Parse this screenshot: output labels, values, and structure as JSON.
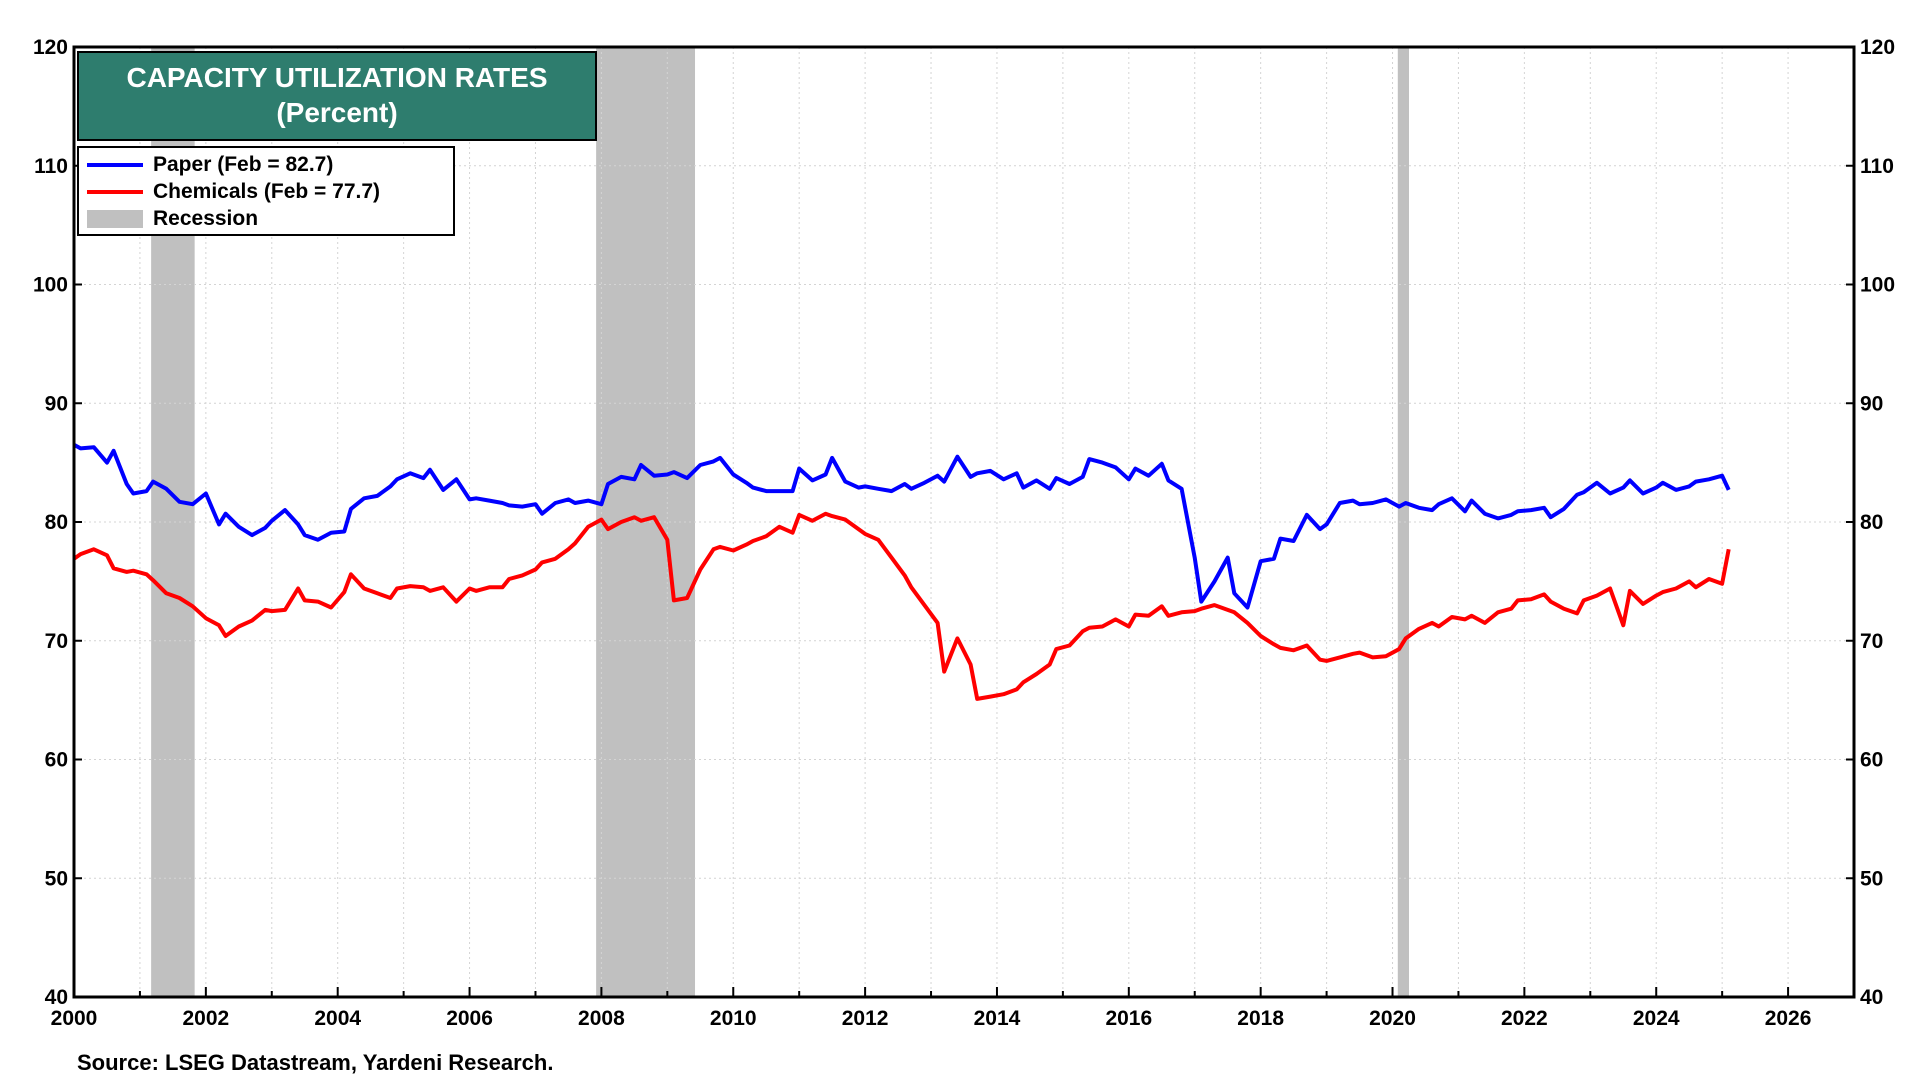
{
  "chart_data": {
    "type": "line",
    "title": "CAPACITY UTILIZATION RATES",
    "subtitle": "(Percent)",
    "source": "Source: LSEG Datastream, Yardeni Research.",
    "x_range": [
      2000,
      2027
    ],
    "y_range": [
      40,
      120
    ],
    "x_ticks": [
      "2000",
      "2002",
      "2004",
      "2006",
      "2008",
      "2010",
      "2012",
      "2014",
      "2016",
      "2018",
      "2020",
      "2022",
      "2024",
      "2026"
    ],
    "y_ticks": [
      "40",
      "50",
      "60",
      "70",
      "80",
      "90",
      "100",
      "110",
      "120"
    ],
    "grid": true,
    "legend_position": "top-left",
    "recession_label": "Recession",
    "recession_color": "#c0c0c0",
    "recessions": [
      [
        2001.17,
        2001.83
      ],
      [
        2007.92,
        2009.42
      ],
      [
        2020.08,
        2020.25
      ]
    ],
    "series": [
      {
        "name": "Paper (Feb = 82.7)",
        "color": "#0000ff",
        "points": [
          [
            2000.0,
            86.5
          ],
          [
            2000.1,
            86.2
          ],
          [
            2000.3,
            86.3
          ],
          [
            2000.5,
            85.0
          ],
          [
            2000.6,
            86.0
          ],
          [
            2000.8,
            83.2
          ],
          [
            2000.9,
            82.4
          ],
          [
            2001.1,
            82.6
          ],
          [
            2001.2,
            83.4
          ],
          [
            2001.4,
            82.8
          ],
          [
            2001.6,
            81.7
          ],
          [
            2001.8,
            81.5
          ],
          [
            2002.0,
            82.4
          ],
          [
            2002.2,
            79.8
          ],
          [
            2002.3,
            80.7
          ],
          [
            2002.5,
            79.6
          ],
          [
            2002.7,
            78.9
          ],
          [
            2002.9,
            79.5
          ],
          [
            2003.0,
            80.1
          ],
          [
            2003.2,
            81.0
          ],
          [
            2003.4,
            79.8
          ],
          [
            2003.5,
            78.9
          ],
          [
            2003.7,
            78.5
          ],
          [
            2003.9,
            79.1
          ],
          [
            2004.1,
            79.2
          ],
          [
            2004.2,
            81.1
          ],
          [
            2004.4,
            82.0
          ],
          [
            2004.6,
            82.2
          ],
          [
            2004.8,
            83.0
          ],
          [
            2004.9,
            83.6
          ],
          [
            2005.1,
            84.1
          ],
          [
            2005.3,
            83.7
          ],
          [
            2005.4,
            84.4
          ],
          [
            2005.6,
            82.7
          ],
          [
            2005.8,
            83.6
          ],
          [
            2006.0,
            81.9
          ],
          [
            2006.1,
            82.0
          ],
          [
            2006.3,
            81.8
          ],
          [
            2006.5,
            81.6
          ],
          [
            2006.6,
            81.4
          ],
          [
            2006.8,
            81.3
          ],
          [
            2007.0,
            81.5
          ],
          [
            2007.1,
            80.7
          ],
          [
            2007.3,
            81.6
          ],
          [
            2007.5,
            81.9
          ],
          [
            2007.6,
            81.6
          ],
          [
            2007.8,
            81.8
          ],
          [
            2008.0,
            81.5
          ],
          [
            2008.1,
            83.2
          ],
          [
            2008.3,
            83.8
          ],
          [
            2008.5,
            83.6
          ],
          [
            2008.6,
            84.8
          ],
          [
            2008.8,
            83.9
          ],
          [
            2009.0,
            84.0
          ],
          [
            2009.1,
            84.2
          ],
          [
            2009.3,
            83.7
          ],
          [
            2009.5,
            84.8
          ],
          [
            2009.7,
            85.1
          ],
          [
            2009.8,
            85.4
          ],
          [
            2010.0,
            84.0
          ],
          [
            2010.2,
            83.3
          ],
          [
            2010.3,
            82.9
          ],
          [
            2010.5,
            82.6
          ],
          [
            2010.7,
            82.6
          ],
          [
            2010.9,
            82.6
          ],
          [
            2011.0,
            84.5
          ],
          [
            2011.2,
            83.5
          ],
          [
            2011.4,
            84.0
          ],
          [
            2011.5,
            85.4
          ],
          [
            2011.7,
            83.4
          ],
          [
            2011.9,
            82.9
          ],
          [
            2012.0,
            83.0
          ],
          [
            2012.2,
            82.8
          ],
          [
            2012.4,
            82.6
          ],
          [
            2012.6,
            83.2
          ],
          [
            2012.7,
            82.8
          ],
          [
            2012.9,
            83.3
          ],
          [
            2013.1,
            83.9
          ],
          [
            2013.2,
            83.4
          ],
          [
            2013.4,
            85.5
          ],
          [
            2013.6,
            83.8
          ],
          [
            2013.7,
            84.1
          ],
          [
            2013.9,
            84.3
          ],
          [
            2014.1,
            83.6
          ],
          [
            2014.3,
            84.1
          ],
          [
            2014.4,
            82.9
          ],
          [
            2014.6,
            83.5
          ],
          [
            2014.8,
            82.8
          ],
          [
            2014.9,
            83.7
          ],
          [
            2015.1,
            83.2
          ],
          [
            2015.3,
            83.8
          ],
          [
            2015.4,
            85.3
          ],
          [
            2015.6,
            85.0
          ],
          [
            2015.8,
            84.6
          ],
          [
            2016.0,
            83.6
          ],
          [
            2016.1,
            84.5
          ],
          [
            2016.3,
            83.9
          ],
          [
            2016.5,
            84.9
          ],
          [
            2016.6,
            83.5
          ],
          [
            2016.8,
            82.8
          ],
          [
            2017.0,
            77.0
          ],
          [
            2017.1,
            73.3
          ],
          [
            2017.3,
            75.0
          ],
          [
            2017.5,
            77.0
          ],
          [
            2017.6,
            74.0
          ],
          [
            2017.8,
            72.8
          ],
          [
            2018.0,
            76.7
          ],
          [
            2018.2,
            76.9
          ],
          [
            2018.3,
            78.6
          ],
          [
            2018.5,
            78.4
          ],
          [
            2018.7,
            80.6
          ],
          [
            2018.9,
            79.4
          ],
          [
            2019.0,
            79.8
          ],
          [
            2019.2,
            81.6
          ],
          [
            2019.4,
            81.8
          ],
          [
            2019.5,
            81.5
          ],
          [
            2019.7,
            81.6
          ],
          [
            2019.9,
            81.9
          ],
          [
            2020.1,
            81.3
          ],
          [
            2020.2,
            81.6
          ],
          [
            2020.4,
            81.2
          ],
          [
            2020.6,
            81.0
          ],
          [
            2020.7,
            81.5
          ],
          [
            2020.9,
            82.0
          ],
          [
            2021.1,
            80.9
          ],
          [
            2021.2,
            81.8
          ],
          [
            2021.4,
            80.7
          ],
          [
            2021.6,
            80.3
          ],
          [
            2021.8,
            80.6
          ],
          [
            2021.9,
            80.9
          ],
          [
            2022.1,
            81.0
          ],
          [
            2022.3,
            81.2
          ],
          [
            2022.4,
            80.4
          ],
          [
            2022.6,
            81.1
          ],
          [
            2022.8,
            82.3
          ],
          [
            2022.9,
            82.5
          ],
          [
            2023.1,
            83.3
          ],
          [
            2023.3,
            82.4
          ],
          [
            2023.5,
            82.9
          ],
          [
            2023.6,
            83.5
          ],
          [
            2023.8,
            82.4
          ],
          [
            2024.0,
            82.9
          ],
          [
            2024.1,
            83.3
          ],
          [
            2024.3,
            82.7
          ],
          [
            2024.5,
            83.0
          ],
          [
            2024.6,
            83.4
          ],
          [
            2024.8,
            83.6
          ],
          [
            2025.0,
            83.9
          ],
          [
            2025.1,
            82.7
          ]
        ]
      },
      {
        "name": "Chemicals (Feb = 77.7)",
        "color": "#ff0000",
        "points": [
          [
            2000.0,
            76.9
          ],
          [
            2000.1,
            77.3
          ],
          [
            2000.3,
            77.7
          ],
          [
            2000.5,
            77.2
          ],
          [
            2000.6,
            76.1
          ],
          [
            2000.8,
            75.8
          ],
          [
            2000.9,
            75.9
          ],
          [
            2001.1,
            75.6
          ],
          [
            2001.2,
            75.1
          ],
          [
            2001.4,
            74.0
          ],
          [
            2001.6,
            73.6
          ],
          [
            2001.8,
            72.9
          ],
          [
            2002.0,
            71.9
          ],
          [
            2002.2,
            71.3
          ],
          [
            2002.3,
            70.4
          ],
          [
            2002.5,
            71.2
          ],
          [
            2002.7,
            71.7
          ],
          [
            2002.9,
            72.6
          ],
          [
            2003.0,
            72.5
          ],
          [
            2003.2,
            72.6
          ],
          [
            2003.4,
            74.4
          ],
          [
            2003.5,
            73.4
          ],
          [
            2003.7,
            73.3
          ],
          [
            2003.9,
            72.8
          ],
          [
            2004.1,
            74.1
          ],
          [
            2004.2,
            75.6
          ],
          [
            2004.4,
            74.4
          ],
          [
            2004.6,
            74.0
          ],
          [
            2004.8,
            73.6
          ],
          [
            2004.9,
            74.4
          ],
          [
            2005.1,
            74.6
          ],
          [
            2005.3,
            74.5
          ],
          [
            2005.4,
            74.2
          ],
          [
            2005.6,
            74.5
          ],
          [
            2005.8,
            73.3
          ],
          [
            2006.0,
            74.4
          ],
          [
            2006.1,
            74.2
          ],
          [
            2006.3,
            74.5
          ],
          [
            2006.5,
            74.5
          ],
          [
            2006.6,
            75.2
          ],
          [
            2006.8,
            75.5
          ],
          [
            2007.0,
            76.0
          ],
          [
            2007.1,
            76.6
          ],
          [
            2007.3,
            76.9
          ],
          [
            2007.5,
            77.7
          ],
          [
            2007.6,
            78.2
          ],
          [
            2007.8,
            79.6
          ],
          [
            2008.0,
            80.2
          ],
          [
            2008.1,
            79.4
          ],
          [
            2008.3,
            80.0
          ],
          [
            2008.5,
            80.4
          ],
          [
            2008.6,
            80.1
          ],
          [
            2008.8,
            80.4
          ],
          [
            2009.0,
            78.5
          ],
          [
            2009.1,
            73.4
          ],
          [
            2009.3,
            73.6
          ],
          [
            2009.5,
            76.0
          ],
          [
            2009.7,
            77.7
          ],
          [
            2009.8,
            77.9
          ],
          [
            2010.0,
            77.6
          ],
          [
            2010.2,
            78.1
          ],
          [
            2010.3,
            78.4
          ],
          [
            2010.5,
            78.8
          ],
          [
            2010.7,
            79.6
          ],
          [
            2010.9,
            79.1
          ],
          [
            2011.0,
            80.6
          ],
          [
            2011.2,
            80.1
          ],
          [
            2011.4,
            80.7
          ],
          [
            2011.5,
            80.5
          ],
          [
            2011.7,
            80.2
          ],
          [
            2011.9,
            79.4
          ],
          [
            2012.0,
            79.0
          ],
          [
            2012.2,
            78.5
          ],
          [
            2012.4,
            77.0
          ],
          [
            2012.6,
            75.5
          ],
          [
            2012.7,
            74.5
          ],
          [
            2012.9,
            73.0
          ],
          [
            2013.1,
            71.5
          ],
          [
            2013.2,
            67.4
          ],
          [
            2013.4,
            70.2
          ],
          [
            2013.6,
            68.0
          ],
          [
            2013.7,
            65.1
          ],
          [
            2013.9,
            65.3
          ],
          [
            2014.1,
            65.5
          ],
          [
            2014.3,
            65.9
          ],
          [
            2014.4,
            66.5
          ],
          [
            2014.6,
            67.2
          ],
          [
            2014.8,
            68.0
          ],
          [
            2014.9,
            69.3
          ],
          [
            2015.1,
            69.6
          ],
          [
            2015.3,
            70.8
          ],
          [
            2015.4,
            71.1
          ],
          [
            2015.6,
            71.2
          ],
          [
            2015.8,
            71.8
          ],
          [
            2016.0,
            71.2
          ],
          [
            2016.1,
            72.2
          ],
          [
            2016.3,
            72.1
          ],
          [
            2016.5,
            72.9
          ],
          [
            2016.6,
            72.1
          ],
          [
            2016.8,
            72.4
          ],
          [
            2017.0,
            72.5
          ],
          [
            2017.1,
            72.7
          ],
          [
            2017.3,
            73.0
          ],
          [
            2017.5,
            72.6
          ],
          [
            2017.6,
            72.4
          ],
          [
            2017.8,
            71.5
          ],
          [
            2018.0,
            70.4
          ],
          [
            2018.2,
            69.7
          ],
          [
            2018.3,
            69.4
          ],
          [
            2018.5,
            69.2
          ],
          [
            2018.7,
            69.6
          ],
          [
            2018.9,
            68.4
          ],
          [
            2019.0,
            68.3
          ],
          [
            2019.2,
            68.6
          ],
          [
            2019.4,
            68.9
          ],
          [
            2019.5,
            69.0
          ],
          [
            2019.7,
            68.6
          ],
          [
            2019.9,
            68.7
          ],
          [
            2020.1,
            69.3
          ],
          [
            2020.2,
            70.2
          ],
          [
            2020.4,
            71.0
          ],
          [
            2020.6,
            71.5
          ],
          [
            2020.7,
            71.2
          ],
          [
            2020.9,
            72.0
          ],
          [
            2021.1,
            71.8
          ],
          [
            2021.2,
            72.1
          ],
          [
            2021.4,
            71.5
          ],
          [
            2021.6,
            72.4
          ],
          [
            2021.8,
            72.7
          ],
          [
            2021.9,
            73.4
          ],
          [
            2022.1,
            73.5
          ],
          [
            2022.3,
            73.9
          ],
          [
            2022.4,
            73.3
          ],
          [
            2022.6,
            72.7
          ],
          [
            2022.8,
            72.3
          ],
          [
            2022.9,
            73.4
          ],
          [
            2023.1,
            73.8
          ],
          [
            2023.3,
            74.4
          ],
          [
            2023.5,
            71.3
          ],
          [
            2023.6,
            74.2
          ],
          [
            2023.8,
            73.1
          ],
          [
            2024.0,
            73.8
          ],
          [
            2024.1,
            74.1
          ],
          [
            2024.3,
            74.4
          ],
          [
            2024.5,
            75.0
          ],
          [
            2024.6,
            74.5
          ],
          [
            2024.8,
            75.2
          ],
          [
            2025.0,
            74.8
          ],
          [
            2025.1,
            77.7
          ]
        ]
      }
    ]
  }
}
